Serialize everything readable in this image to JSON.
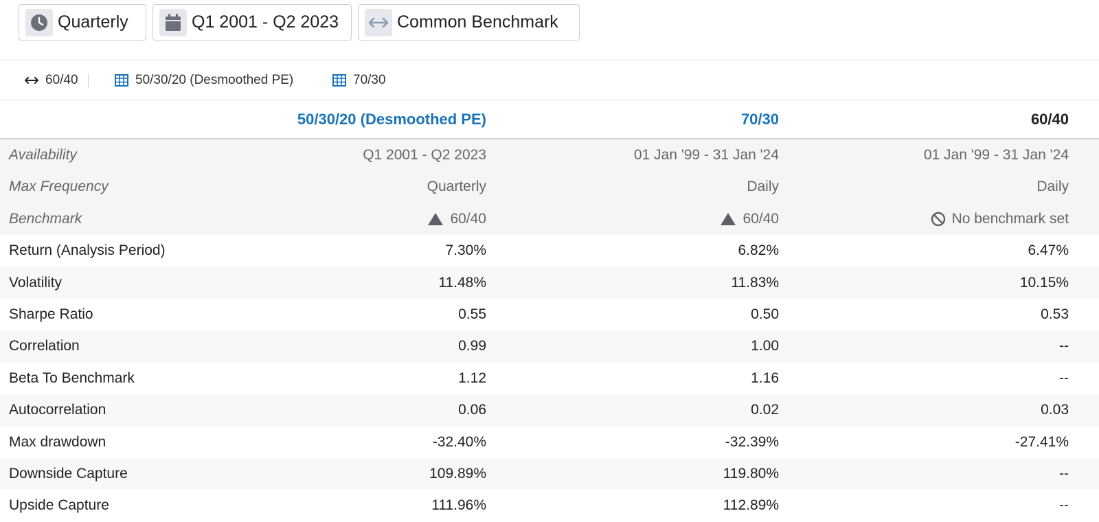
{
  "toolbar": {
    "frequency": {
      "label": "Quarterly",
      "icon": "clock-icon"
    },
    "period": {
      "label": "Q1 2001 - Q2 2023",
      "icon": "calendar-icon"
    },
    "benchmark": {
      "label": "Common Benchmark",
      "icon": "arrows-horizontal-icon"
    }
  },
  "tabs": [
    {
      "label": "60/40",
      "icon": "arrows-horizontal-icon"
    },
    {
      "label": "50/30/20 (Desmoothed PE)",
      "icon": "table-icon"
    },
    {
      "label": "70/30",
      "icon": "table-icon"
    }
  ],
  "columns": [
    {
      "label": "50/30/20 (Desmoothed PE)",
      "color": "#1a73b8"
    },
    {
      "label": "70/30",
      "color": "#1a73b8"
    },
    {
      "label": "60/40",
      "color": "#222222"
    }
  ],
  "meta_rows": [
    {
      "label": "Availability",
      "values": [
        "Q1 2001 - Q2 2023",
        "01 Jan '99 - 31 Jan '24",
        "01 Jan '99 - 31 Jan '24"
      ]
    },
    {
      "label": "Max Frequency",
      "values": [
        "Quarterly",
        "Daily",
        "Daily"
      ]
    }
  ],
  "benchmark_row": {
    "label": "Benchmark",
    "values": [
      {
        "text": "60/40",
        "icon": "triangle-up-icon"
      },
      {
        "text": "60/40",
        "icon": "triangle-up-icon"
      },
      {
        "text": "No benchmark set",
        "icon": "prohibited-icon"
      }
    ]
  },
  "rows": [
    {
      "label": "Return (Analysis Period)",
      "values": [
        "7.30%",
        "6.82%",
        "6.47%"
      ]
    },
    {
      "label": "Volatility",
      "values": [
        "11.48%",
        "11.83%",
        "10.15%"
      ]
    },
    {
      "label": "Sharpe Ratio",
      "values": [
        "0.55",
        "0.50",
        "0.53"
      ]
    },
    {
      "label": "Correlation",
      "values": [
        "0.99",
        "1.00",
        "--"
      ]
    },
    {
      "label": "Beta To Benchmark",
      "values": [
        "1.12",
        "1.16",
        "--"
      ]
    },
    {
      "label": "Autocorrelation",
      "values": [
        "0.06",
        "0.02",
        "0.03"
      ]
    },
    {
      "label": "Max drawdown",
      "values": [
        "-32.40%",
        "-32.39%",
        "-27.41%"
      ]
    },
    {
      "label": "Downside Capture",
      "values": [
        "109.89%",
        "119.80%",
        "--"
      ]
    },
    {
      "label": "Upside Capture",
      "values": [
        "111.96%",
        "112.89%",
        "--"
      ]
    }
  ]
}
